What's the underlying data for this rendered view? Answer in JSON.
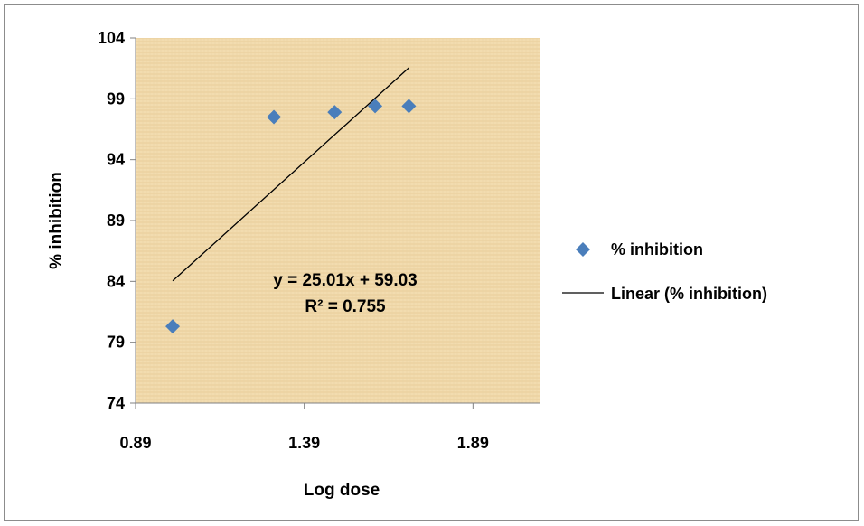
{
  "chart_data": {
    "type": "scatter",
    "title": "",
    "xlabel": "Log dose",
    "ylabel": "% inhibition",
    "xlim": [
      0.89,
      2.09
    ],
    "ylim": [
      74,
      104
    ],
    "x_ticks": [
      "0.89",
      "1.39",
      "1.89"
    ],
    "y_ticks": [
      "74",
      "79",
      "84",
      "89",
      "94",
      "99",
      "104"
    ],
    "series": [
      {
        "name": "% inhibition",
        "marker": "diamond",
        "color": "#4a7ebb",
        "points": [
          {
            "x": 1.0,
            "y": 80.3
          },
          {
            "x": 1.3,
            "y": 97.5
          },
          {
            "x": 1.48,
            "y": 97.9
          },
          {
            "x": 1.6,
            "y": 98.4
          },
          {
            "x": 1.7,
            "y": 98.4
          }
        ]
      }
    ],
    "trendline": {
      "name": "Linear (% inhibition)",
      "type": "linear",
      "slope": 25.01,
      "intercept": 59.03,
      "x_range": [
        1.0,
        1.7
      ],
      "color": "#000000"
    },
    "annotations": {
      "equation": "y = 25.01x + 59.03",
      "r_squared": "R² = 0.755"
    },
    "plot_background": "#f2dcaf",
    "grid": false,
    "legend_position": "right"
  }
}
